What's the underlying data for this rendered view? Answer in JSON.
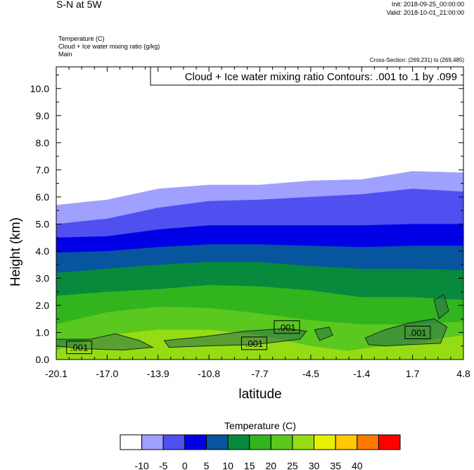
{
  "header": {
    "title": "S-N at 5W",
    "init": "Init: 2018-09-25_00:00:00",
    "valid": "Valid: 2018-10-01_21:00:00",
    "fields": [
      "Temperature   (C)",
      "Cloud + Ice water mixing ratio   (g/kg)",
      "Main"
    ],
    "cross_section": "Cross-Section: (269,231) to (269,485)"
  },
  "chart_data": {
    "type": "contour",
    "contour_info": "Cloud + Ice water mixing ratio Contours: .001 to .1 by .099",
    "xlabel": "latitude",
    "ylabel": "Height (km)",
    "xlim": [
      -20.1,
      4.8
    ],
    "ylim": [
      0,
      10.8
    ],
    "x_ticks": [
      "-20.1",
      "-17.0",
      "-13.9",
      "-10.8",
      "-7.7",
      "-4.5",
      "-1.4",
      "1.7",
      "4.8"
    ],
    "y_ticks": [
      "0.0",
      "1.0",
      "2.0",
      "3.0",
      "4.0",
      "5.0",
      "6.0",
      "7.0",
      "8.0",
      "9.0",
      "10.0"
    ],
    "contour_labels": [
      {
        "text": ".001",
        "x": -18.7,
        "y": 0.45
      },
      {
        "text": ".001",
        "x": -8.0,
        "y": 0.6
      },
      {
        "text": ".001",
        "x": -6.0,
        "y": 1.2
      },
      {
        "text": ".001",
        "x": 2.0,
        "y": 1.0
      }
    ],
    "colorbar": {
      "title": "Temperature  (C)",
      "colors": [
        "#ffffff",
        "#a0a0ff",
        "#5050f0",
        "#0000e6",
        "#06559e",
        "#078a3c",
        "#32b41e",
        "#5ac81e",
        "#96dc14",
        "#e6f000",
        "#ffc800",
        "#ff7800",
        "#ff0000"
      ],
      "labels": [
        "-10",
        "-5",
        "0",
        "5",
        "10",
        "15",
        "20",
        "25",
        "30",
        "35",
        "40"
      ]
    },
    "temperature_bands": [
      {
        "color": "#a0a0ff",
        "top": [
          5.7,
          5.9,
          6.3,
          6.45,
          6.45,
          6.6,
          6.65,
          6.95,
          6.9
        ],
        "left_top": 5.7
      },
      {
        "color": "#5050f0",
        "top": [
          5.0,
          5.2,
          5.6,
          5.85,
          5.9,
          6.0,
          6.1,
          6.3,
          6.2
        ]
      },
      {
        "color": "#0000e6",
        "top": [
          4.5,
          4.55,
          4.8,
          4.95,
          4.95,
          4.95,
          4.95,
          5.0,
          5.0
        ]
      },
      {
        "color": "#06559e",
        "top": [
          3.95,
          4.0,
          4.15,
          4.25,
          4.25,
          4.2,
          4.15,
          4.2,
          4.2
        ]
      },
      {
        "color": "#078a3c",
        "top": [
          3.2,
          3.35,
          3.5,
          3.6,
          3.6,
          3.45,
          3.35,
          3.35,
          3.3
        ]
      },
      {
        "color": "#32b41e",
        "top": [
          2.35,
          2.5,
          2.6,
          2.75,
          2.7,
          2.55,
          2.3,
          2.3,
          2.2
        ]
      },
      {
        "color": "#5ac81e",
        "top": [
          1.3,
          1.75,
          1.95,
          1.9,
          1.7,
          1.45,
          1.3,
          1.3,
          1.4
        ]
      },
      {
        "color": "#96dc14",
        "top": [
          0.35,
          0.9,
          1.1,
          1.1,
          0.9,
          0.5,
          0.25,
          0.4,
          0.6
        ]
      }
    ]
  }
}
